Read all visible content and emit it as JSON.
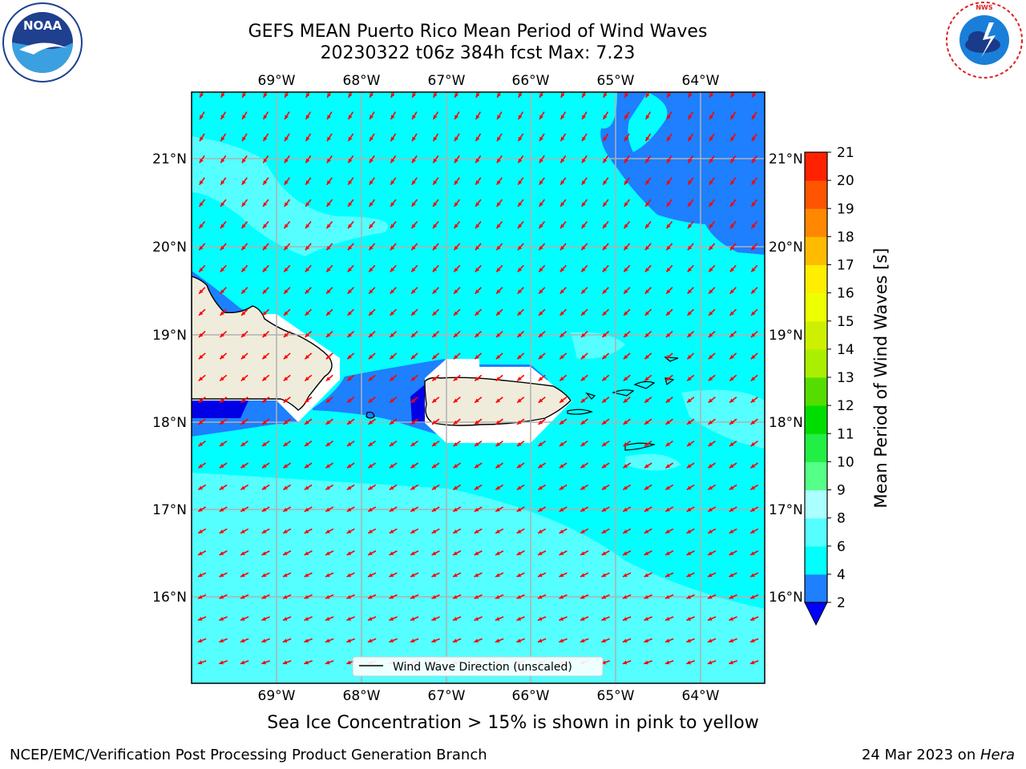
{
  "header": {
    "title_line1": "GEFS MEAN Puerto Rico Mean Period of Wind Waves",
    "title_line2": "20230322 t06z 384h fcst   Max: 7.23"
  },
  "map": {
    "lon_labels": [
      "69°W",
      "68°W",
      "67°W",
      "66°W",
      "65°W",
      "64°W"
    ],
    "lat_labels": [
      "21°N",
      "20°N",
      "19°N",
      "18°N",
      "17°N",
      "16°N"
    ],
    "legend_label": "Wind Wave Direction (unscaled)",
    "colors": {
      "ocean_main": "#00ffff",
      "ocean_light": "#55ffff",
      "ocean_dark": "#1e7fff",
      "ocean_deep": "#0000e6",
      "land": "#f0ecdc",
      "arrow": "#ff0000",
      "grid": "#b0b0b0"
    }
  },
  "colorbar": {
    "label": "Mean Period of Wind Waves [s]",
    "ticks": [
      "2",
      "4",
      "6",
      "8",
      "9",
      "10",
      "11",
      "12",
      "13",
      "14",
      "15",
      "16",
      "17",
      "18",
      "19",
      "20",
      "21"
    ],
    "colors": [
      "#1e7fff",
      "#00ffff",
      "#55ffff",
      "#aaffff",
      "#55ff88",
      "#22ee44",
      "#00dd00",
      "#55dd00",
      "#aaee00",
      "#ccf000",
      "#eeff00",
      "#ffee00",
      "#ffbb00",
      "#ff8800",
      "#ff5500",
      "#ff2200"
    ],
    "under_color": "#0000ff"
  },
  "footer": {
    "note": "Sea Ice Concentration > 15% is shown in pink to yellow",
    "credit": "NCEP/EMC/Verification Post Processing Product Generation Branch",
    "date": "24 Mar 2023 on ",
    "host": "Hera"
  },
  "logos": {
    "left": "NOAA",
    "right": "NATIONAL WEATHER SERVICE"
  }
}
